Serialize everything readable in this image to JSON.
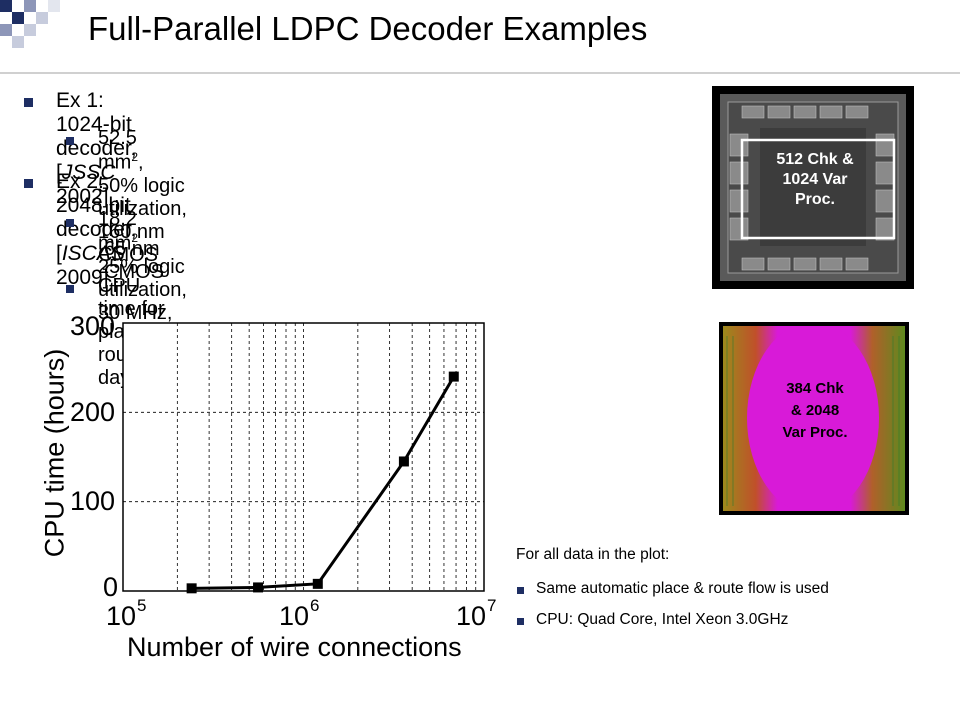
{
  "slide": {
    "title": "Full-Parallel LDPC Decoder Examples",
    "accent_color": "#1e2e63"
  },
  "bullets": [
    {
      "level": 1,
      "parts": [
        "Ex 1: 1024-bit decoder, [",
        "JSSC",
        " 2002]"
      ]
    },
    {
      "level": 2,
      "parts": [
        "52.5 mm",
        "2",
        ", 50% logic utilization, 160 nm CMOS"
      ]
    },
    {
      "level": 1,
      "parts": [
        "Ex 2: 2048 bit decoder, [",
        "ISCAS",
        " 2009]"
      ]
    },
    {
      "level": 2,
      "parts": [
        "18.2 mm",
        "2",
        ", 25% logic utilization, 30 MHz,"
      ],
      "line2": "65 nm CMOS"
    },
    {
      "level": 2,
      "parts": [
        "CPU time for place & route>10 days"
      ]
    }
  ],
  "chip1": {
    "label_line1": "512 Chk &",
    "label_line2": "1024 Var",
    "label_line3": "Proc."
  },
  "chip2": {
    "label_line1": "384 Chk",
    "label_line2": "& 2048",
    "label_line3": "Var Proc.",
    "fill_color": "#d81ad8"
  },
  "notes": {
    "heading": "For all data in the plot:",
    "items": [
      "Same automatic place & route flow is used",
      "CPU: Quad Core, Intel Xeon 3.0GHz"
    ]
  },
  "chart_data": {
    "type": "line",
    "x_scale": "log",
    "xlabel": "Number of wire connections",
    "ylabel": "CPU time (hours)",
    "xlim": [
      100000,
      10000000
    ],
    "ylim": [
      0,
      300
    ],
    "yticks": [
      "0",
      "100",
      "200",
      "300"
    ],
    "xticks": [
      {
        "base": "10",
        "exp": "5"
      },
      {
        "base": "10",
        "exp": "6"
      },
      {
        "base": "10",
        "exp": "7"
      }
    ],
    "grid": true,
    "series": [
      {
        "x": [
          240000,
          560000,
          1200000,
          3600000,
          6800000
        ],
        "y": [
          3,
          4,
          8,
          145,
          240
        ]
      }
    ]
  }
}
